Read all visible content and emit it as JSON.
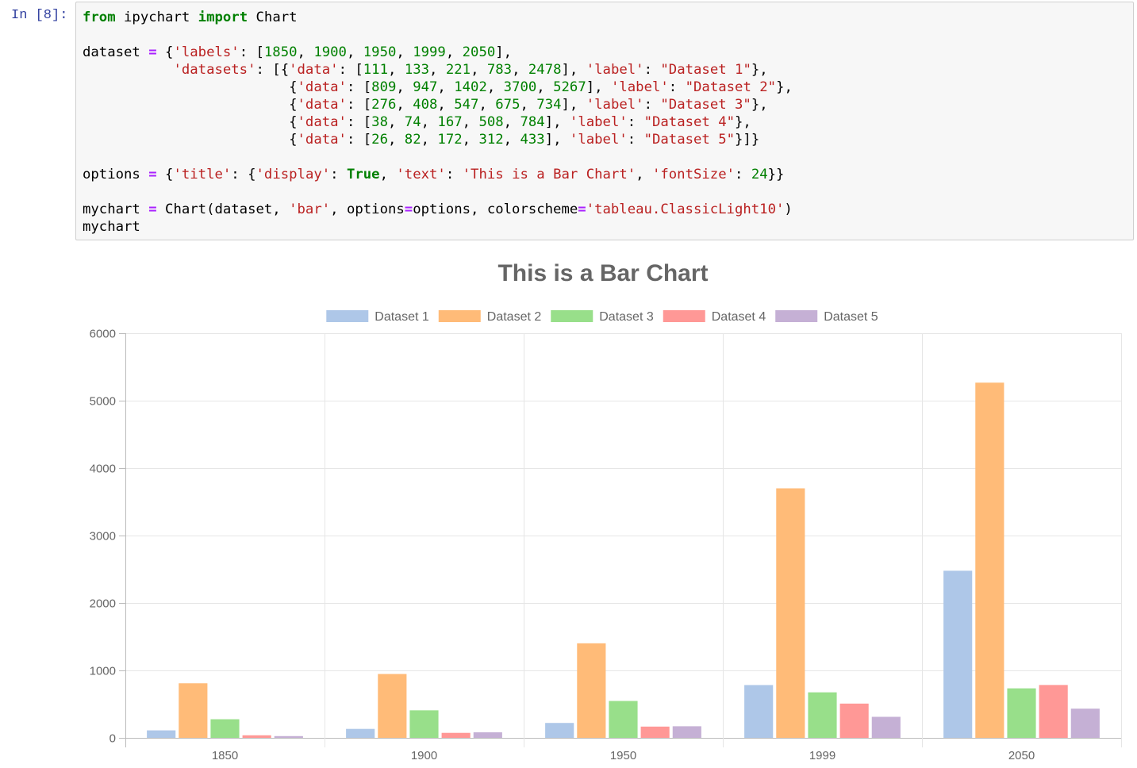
{
  "cell": {
    "prompt": "In [8]:",
    "code_lines": [
      [
        [
          "kw",
          "from"
        ],
        [
          "t",
          " ipychart "
        ],
        [
          "kw",
          "import"
        ],
        [
          "t",
          " Chart"
        ]
      ],
      [],
      [
        [
          "t",
          "dataset "
        ],
        [
          "op",
          "="
        ],
        [
          "t",
          " {"
        ],
        [
          "str",
          "'labels'"
        ],
        [
          "t",
          ": ["
        ],
        [
          "num",
          "1850"
        ],
        [
          "t",
          ", "
        ],
        [
          "num",
          "1900"
        ],
        [
          "t",
          ", "
        ],
        [
          "num",
          "1950"
        ],
        [
          "t",
          ", "
        ],
        [
          "num",
          "1999"
        ],
        [
          "t",
          ", "
        ],
        [
          "num",
          "2050"
        ],
        [
          "t",
          "],"
        ]
      ],
      [
        [
          "t",
          "           "
        ],
        [
          "str",
          "'datasets'"
        ],
        [
          "t",
          ": [{"
        ],
        [
          "str",
          "'data'"
        ],
        [
          "t",
          ": ["
        ],
        [
          "num",
          "111"
        ],
        [
          "t",
          ", "
        ],
        [
          "num",
          "133"
        ],
        [
          "t",
          ", "
        ],
        [
          "num",
          "221"
        ],
        [
          "t",
          ", "
        ],
        [
          "num",
          "783"
        ],
        [
          "t",
          ", "
        ],
        [
          "num",
          "2478"
        ],
        [
          "t",
          "], "
        ],
        [
          "str",
          "'label'"
        ],
        [
          "t",
          ": "
        ],
        [
          "str",
          "\"Dataset 1\""
        ],
        [
          "t",
          "},"
        ]
      ],
      [
        [
          "t",
          "                         {"
        ],
        [
          "str",
          "'data'"
        ],
        [
          "t",
          ": ["
        ],
        [
          "num",
          "809"
        ],
        [
          "t",
          ", "
        ],
        [
          "num",
          "947"
        ],
        [
          "t",
          ", "
        ],
        [
          "num",
          "1402"
        ],
        [
          "t",
          ", "
        ],
        [
          "num",
          "3700"
        ],
        [
          "t",
          ", "
        ],
        [
          "num",
          "5267"
        ],
        [
          "t",
          "], "
        ],
        [
          "str",
          "'label'"
        ],
        [
          "t",
          ": "
        ],
        [
          "str",
          "\"Dataset 2\""
        ],
        [
          "t",
          "},"
        ]
      ],
      [
        [
          "t",
          "                         {"
        ],
        [
          "str",
          "'data'"
        ],
        [
          "t",
          ": ["
        ],
        [
          "num",
          "276"
        ],
        [
          "t",
          ", "
        ],
        [
          "num",
          "408"
        ],
        [
          "t",
          ", "
        ],
        [
          "num",
          "547"
        ],
        [
          "t",
          ", "
        ],
        [
          "num",
          "675"
        ],
        [
          "t",
          ", "
        ],
        [
          "num",
          "734"
        ],
        [
          "t",
          "], "
        ],
        [
          "str",
          "'label'"
        ],
        [
          "t",
          ": "
        ],
        [
          "str",
          "\"Dataset 3\""
        ],
        [
          "t",
          "},"
        ]
      ],
      [
        [
          "t",
          "                         {"
        ],
        [
          "str",
          "'data'"
        ],
        [
          "t",
          ": ["
        ],
        [
          "num",
          "38"
        ],
        [
          "t",
          ", "
        ],
        [
          "num",
          "74"
        ],
        [
          "t",
          ", "
        ],
        [
          "num",
          "167"
        ],
        [
          "t",
          ", "
        ],
        [
          "num",
          "508"
        ],
        [
          "t",
          ", "
        ],
        [
          "num",
          "784"
        ],
        [
          "t",
          "], "
        ],
        [
          "str",
          "'label'"
        ],
        [
          "t",
          ": "
        ],
        [
          "str",
          "\"Dataset 4\""
        ],
        [
          "t",
          "},"
        ]
      ],
      [
        [
          "t",
          "                         {"
        ],
        [
          "str",
          "'data'"
        ],
        [
          "t",
          ": ["
        ],
        [
          "num",
          "26"
        ],
        [
          "t",
          ", "
        ],
        [
          "num",
          "82"
        ],
        [
          "t",
          ", "
        ],
        [
          "num",
          "172"
        ],
        [
          "t",
          ", "
        ],
        [
          "num",
          "312"
        ],
        [
          "t",
          ", "
        ],
        [
          "num",
          "433"
        ],
        [
          "t",
          "], "
        ],
        [
          "str",
          "'label'"
        ],
        [
          "t",
          ": "
        ],
        [
          "str",
          "\"Dataset 5\""
        ],
        [
          "t",
          "}]}"
        ]
      ],
      [],
      [
        [
          "t",
          "options "
        ],
        [
          "op",
          "="
        ],
        [
          "t",
          " {"
        ],
        [
          "str",
          "'title'"
        ],
        [
          "t",
          ": {"
        ],
        [
          "str",
          "'display'"
        ],
        [
          "t",
          ": "
        ],
        [
          "kw",
          "True"
        ],
        [
          "t",
          ", "
        ],
        [
          "str",
          "'text'"
        ],
        [
          "t",
          ": "
        ],
        [
          "str",
          "'This is a Bar Chart'"
        ],
        [
          "t",
          ", "
        ],
        [
          "str",
          "'fontSize'"
        ],
        [
          "t",
          ": "
        ],
        [
          "num",
          "24"
        ],
        [
          "t",
          "}}"
        ]
      ],
      [],
      [
        [
          "t",
          "mychart "
        ],
        [
          "op",
          "="
        ],
        [
          "t",
          " Chart(dataset, "
        ],
        [
          "str",
          "'bar'"
        ],
        [
          "t",
          ", options"
        ],
        [
          "op",
          "="
        ],
        [
          "t",
          "options, colorscheme"
        ],
        [
          "op",
          "="
        ],
        [
          "str",
          "'tableau.ClassicLight10'"
        ],
        [
          "t",
          ")"
        ]
      ],
      [
        [
          "t",
          "mychart"
        ]
      ]
    ]
  },
  "chart_data": {
    "type": "bar",
    "title": "This is a Bar Chart",
    "categories": [
      "1850",
      "1900",
      "1950",
      "1999",
      "2050"
    ],
    "series": [
      {
        "name": "Dataset 1",
        "values": [
          111,
          133,
          221,
          783,
          2478
        ],
        "color": "#aec7e8"
      },
      {
        "name": "Dataset 2",
        "values": [
          809,
          947,
          1402,
          3700,
          5267
        ],
        "color": "#ffbb78"
      },
      {
        "name": "Dataset 3",
        "values": [
          276,
          408,
          547,
          675,
          734
        ],
        "color": "#98df8a"
      },
      {
        "name": "Dataset 4",
        "values": [
          38,
          74,
          167,
          508,
          784
        ],
        "color": "#ff9896"
      },
      {
        "name": "Dataset 5",
        "values": [
          26,
          82,
          172,
          312,
          433
        ],
        "color": "#c5b0d5"
      }
    ],
    "ylim": [
      0,
      6000
    ],
    "yticks": [
      0,
      1000,
      2000,
      3000,
      4000,
      5000,
      6000
    ],
    "legend": "top",
    "grid": true
  }
}
